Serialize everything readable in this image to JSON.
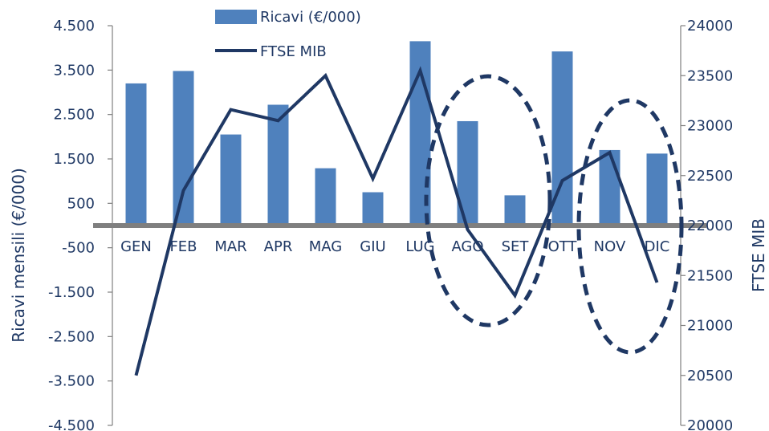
{
  "chart_data": {
    "type": "bar",
    "categories": [
      "GEN",
      "FEB",
      "MAR",
      "APR",
      "MAG",
      "GIU",
      "LUG",
      "AGO",
      "SET",
      "OTT",
      "NOV",
      "DIC"
    ],
    "series": [
      {
        "name": "Ricavi (€/000)",
        "type": "bar",
        "axis": "left",
        "color": "#4f81bd",
        "values": [
          3200,
          3480,
          2050,
          2720,
          1290,
          750,
          4150,
          2350,
          680,
          3920,
          1700,
          1620
        ]
      },
      {
        "name": "FTSE MIB",
        "type": "line",
        "axis": "right",
        "color": "#1f3864",
        "values": [
          20500,
          22350,
          23160,
          23050,
          23500,
          22470,
          23550,
          21960,
          21300,
          22450,
          22730,
          21430
        ]
      }
    ],
    "ylabel": "Ricavi mensili (€/000)",
    "y2label": "FTSE MIB",
    "ylim": [
      -4500,
      4500
    ],
    "y2lim": [
      20000,
      24000
    ],
    "yticks": [
      "4.500",
      "3.500",
      "2.500",
      "1.500",
      "500",
      "-500",
      "-1.500",
      "-2.500",
      "-3.500",
      "-4.500"
    ],
    "y2ticks": [
      "24000",
      "23500",
      "23000",
      "22500",
      "22000",
      "21500",
      "21000",
      "20500",
      "20000"
    ],
    "legend": "top",
    "grid": false,
    "highlight_ellipses": [
      {
        "around": [
          "AGO",
          "SET"
        ],
        "style": "dashed"
      },
      {
        "around": [
          "NOV",
          "DIC"
        ],
        "style": "dashed"
      }
    ]
  }
}
